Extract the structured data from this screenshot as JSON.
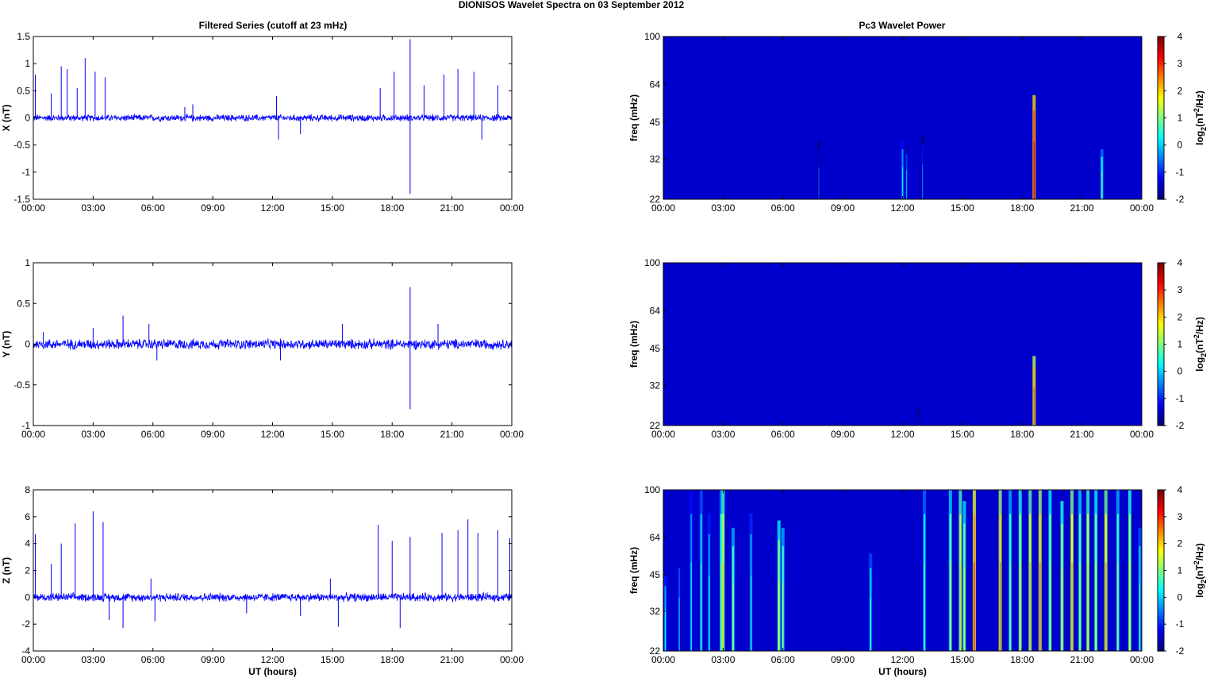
{
  "figure": {
    "title": "DIONISOS Wavelet Spectra on 03 September 2012",
    "left_title": "Filtered Series (cutoff at 23 mHz)",
    "right_title": "Pc3 Wavelet Power",
    "xlabel": "UT (hours)",
    "time_ticks": [
      "00:00",
      "03:00",
      "06:00",
      "09:00",
      "12:00",
      "15:00",
      "18:00",
      "21:00",
      "00:00"
    ],
    "colorbar_label": "log2(nT2/Hz)",
    "colorbar_ticks": [
      "4",
      "3",
      "2",
      "1",
      "0",
      "-1",
      "-2"
    ]
  },
  "chart_data": [
    {
      "type": "line",
      "ylabel": "X (nT)",
      "ylim": [
        -1.5,
        1.5
      ],
      "yticks": [
        "1.5",
        "1",
        "0.5",
        "0",
        "-0.5",
        "-1",
        "-1.5"
      ],
      "xlim_hours": [
        0,
        24
      ],
      "color": "#0000ff",
      "noise_amplitude": 0.05,
      "spikes": [
        {
          "t": 0.1,
          "v": 0.8
        },
        {
          "t": 0.9,
          "v": 0.45
        },
        {
          "t": 1.4,
          "v": 0.95
        },
        {
          "t": 1.7,
          "v": 0.9
        },
        {
          "t": 2.2,
          "v": 0.55
        },
        {
          "t": 2.6,
          "v": 1.1
        },
        {
          "t": 3.1,
          "v": 0.85
        },
        {
          "t": 3.6,
          "v": 0.75
        },
        {
          "t": 7.6,
          "v": 0.2
        },
        {
          "t": 8.0,
          "v": 0.25
        },
        {
          "t": 12.2,
          "v": 0.4
        },
        {
          "t": 12.3,
          "v": -0.4
        },
        {
          "t": 13.4,
          "v": -0.3
        },
        {
          "t": 17.4,
          "v": 0.55
        },
        {
          "t": 18.1,
          "v": 0.85
        },
        {
          "t": 18.9,
          "v": 1.45
        },
        {
          "t": 18.9,
          "v": -1.4
        },
        {
          "t": 19.6,
          "v": 0.6
        },
        {
          "t": 20.6,
          "v": 0.8
        },
        {
          "t": 21.3,
          "v": 0.9
        },
        {
          "t": 22.1,
          "v": 0.85
        },
        {
          "t": 22.5,
          "v": -0.4
        },
        {
          "t": 23.3,
          "v": 0.6
        }
      ]
    },
    {
      "type": "line",
      "ylabel": "Y (nT)",
      "ylim": [
        -1,
        1
      ],
      "yticks": [
        "1",
        "0.5",
        "0",
        "-0.5",
        "-1"
      ],
      "xlim_hours": [
        0,
        24
      ],
      "color": "#0000ff",
      "noise_amplitude": 0.05,
      "spikes": [
        {
          "t": 0.5,
          "v": 0.15
        },
        {
          "t": 3.0,
          "v": 0.2
        },
        {
          "t": 4.5,
          "v": 0.35
        },
        {
          "t": 5.8,
          "v": 0.25
        },
        {
          "t": 6.2,
          "v": -0.2
        },
        {
          "t": 12.4,
          "v": -0.2
        },
        {
          "t": 15.5,
          "v": 0.25
        },
        {
          "t": 18.9,
          "v": 0.7
        },
        {
          "t": 18.9,
          "v": -0.8
        },
        {
          "t": 20.3,
          "v": 0.25
        }
      ]
    },
    {
      "type": "line",
      "ylabel": "Z (nT)",
      "ylim": [
        -4,
        8
      ],
      "yticks": [
        "8",
        "6",
        "4",
        "2",
        "0",
        "-2",
        "-4"
      ],
      "xlim_hours": [
        0,
        24
      ],
      "color": "#0000ff",
      "noise_amplitude": 0.25,
      "spikes": [
        {
          "t": 0.1,
          "v": 4.7
        },
        {
          "t": 0.9,
          "v": 2.5
        },
        {
          "t": 1.4,
          "v": 4.0
        },
        {
          "t": 2.1,
          "v": 5.5
        },
        {
          "t": 3.0,
          "v": 6.4
        },
        {
          "t": 3.5,
          "v": 5.6
        },
        {
          "t": 3.8,
          "v": -1.7
        },
        {
          "t": 4.5,
          "v": -2.3
        },
        {
          "t": 5.9,
          "v": 1.4
        },
        {
          "t": 6.1,
          "v": -1.8
        },
        {
          "t": 10.7,
          "v": -1.2
        },
        {
          "t": 13.4,
          "v": -1.4
        },
        {
          "t": 14.9,
          "v": 1.4
        },
        {
          "t": 15.3,
          "v": -2.2
        },
        {
          "t": 17.3,
          "v": 5.4
        },
        {
          "t": 18.0,
          "v": 4.2
        },
        {
          "t": 18.4,
          "v": -2.3
        },
        {
          "t": 18.9,
          "v": 4.5
        },
        {
          "t": 20.5,
          "v": 4.8
        },
        {
          "t": 21.3,
          "v": 5.0
        },
        {
          "t": 21.8,
          "v": 5.8
        },
        {
          "t": 22.3,
          "v": 4.8
        },
        {
          "t": 23.3,
          "v": 5.0
        },
        {
          "t": 23.9,
          "v": 4.4
        }
      ]
    },
    {
      "type": "heatmap",
      "ylabel": "freq (mHz)",
      "yticks": [
        "100",
        "64",
        "45",
        "32",
        "22"
      ],
      "ylim": [
        22,
        100
      ],
      "clim": [
        -2,
        4
      ],
      "features": [
        {
          "t": 7.8,
          "f_top": 38,
          "p": -0.8
        },
        {
          "t": 12.0,
          "f_top": 38,
          "p": 0.2
        },
        {
          "t": 12.2,
          "f_top": 36,
          "p": -0.3
        },
        {
          "t": 13.0,
          "f_top": 40,
          "p": -0.6
        },
        {
          "t": 18.6,
          "f_top": 58,
          "p": 3.4
        },
        {
          "t": 22.0,
          "f_top": 35,
          "p": 0.8
        }
      ]
    },
    {
      "type": "heatmap",
      "ylabel": "freq (mHz)",
      "yticks": [
        "100",
        "64",
        "45",
        "32",
        "22"
      ],
      "ylim": [
        22,
        100
      ],
      "clim": [
        -2,
        4
      ],
      "features": [
        {
          "t": 12.8,
          "f_top": 26,
          "p": -1.2
        },
        {
          "t": 18.6,
          "f_top": 42,
          "p": 2.8
        }
      ]
    },
    {
      "type": "heatmap",
      "ylabel": "freq (mHz)",
      "yticks": [
        "100",
        "64",
        "45",
        "32",
        "22"
      ],
      "ylim": [
        22,
        100
      ],
      "clim": [
        -2,
        4
      ],
      "features": [
        {
          "t": 0.1,
          "f_top": 45,
          "p": 0.3
        },
        {
          "t": 0.8,
          "f_top": 55,
          "p": -0.2
        },
        {
          "t": 1.4,
          "f_top": 100,
          "p": 0.2
        },
        {
          "t": 1.9,
          "f_top": 100,
          "p": 0.6
        },
        {
          "t": 2.3,
          "f_top": 80,
          "p": 0.3
        },
        {
          "t": 2.9,
          "f_top": 100,
          "p": 1.0
        },
        {
          "t": 3.0,
          "f_top": 100,
          "p": 2.0
        },
        {
          "t": 3.5,
          "f_top": 70,
          "p": 1.2
        },
        {
          "t": 4.4,
          "f_top": 80,
          "p": 0.4
        },
        {
          "t": 5.8,
          "f_top": 75,
          "p": 1.6
        },
        {
          "t": 6.0,
          "f_top": 70,
          "p": 1.2
        },
        {
          "t": 10.4,
          "f_top": 55,
          "p": 0.6
        },
        {
          "t": 13.1,
          "f_top": 100,
          "p": 0.8
        },
        {
          "t": 14.4,
          "f_top": 100,
          "p": 1.4
        },
        {
          "t": 14.9,
          "f_top": 100,
          "p": 2.0
        },
        {
          "t": 15.1,
          "f_top": 90,
          "p": 1.5
        },
        {
          "t": 15.6,
          "f_top": 100,
          "p": 3.0
        },
        {
          "t": 16.9,
          "f_top": 100,
          "p": 2.6
        },
        {
          "t": 17.4,
          "f_top": 100,
          "p": 1.2
        },
        {
          "t": 17.9,
          "f_top": 100,
          "p": 1.8
        },
        {
          "t": 18.4,
          "f_top": 100,
          "p": 2.2
        },
        {
          "t": 18.9,
          "f_top": 100,
          "p": 2.6
        },
        {
          "t": 19.4,
          "f_top": 100,
          "p": 1.6
        },
        {
          "t": 20.0,
          "f_top": 90,
          "p": 1.8
        },
        {
          "t": 20.5,
          "f_top": 100,
          "p": 2.4
        },
        {
          "t": 20.9,
          "f_top": 100,
          "p": 1.4
        },
        {
          "t": 21.3,
          "f_top": 100,
          "p": 2.0
        },
        {
          "t": 21.7,
          "f_top": 100,
          "p": 1.6
        },
        {
          "t": 22.2,
          "f_top": 100,
          "p": 2.4
        },
        {
          "t": 22.8,
          "f_top": 100,
          "p": 1.2
        },
        {
          "t": 23.4,
          "f_top": 100,
          "p": 1.8
        },
        {
          "t": 23.9,
          "f_top": 70,
          "p": 0.6
        }
      ]
    }
  ]
}
